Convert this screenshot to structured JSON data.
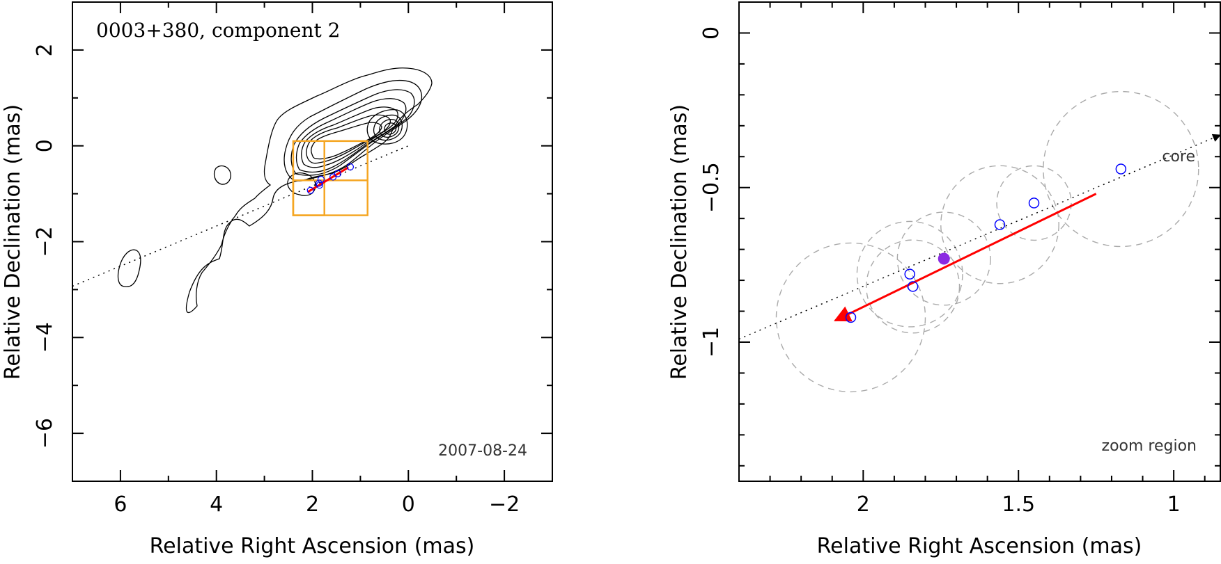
{
  "chart_data": [
    {
      "type": "scatter",
      "panel": "left",
      "title": "0003+380, component 2",
      "xlabel": "Relative Right Ascension (mas)",
      "ylabel": "Relative Declination (mas)",
      "xlim": [
        7,
        -3
      ],
      "ylim": [
        -7,
        3
      ],
      "xticks": [
        6,
        4,
        2,
        0,
        -2
      ],
      "yticks": [
        2,
        0,
        -2,
        -4,
        -6
      ],
      "xtick_labels": [
        "6",
        "4",
        "2",
        "0",
        "−2"
      ],
      "ytick_labels": [
        "2",
        "0",
        "−2",
        "−4",
        "−6"
      ],
      "date_label": "2007-08-24",
      "contour_map": "nested contours of core (peak near 0,0) with jet extending to the south-east; isolated blobs near (3.9,-0.6) and (5.8,-2.6)",
      "component_positions": [
        {
          "x": 1.21,
          "y": -0.44
        },
        {
          "x": 1.47,
          "y": -0.58
        },
        {
          "x": 1.57,
          "y": -0.65
        },
        {
          "x": 1.82,
          "y": -0.7
        },
        {
          "x": 1.86,
          "y": -0.78
        },
        {
          "x": 1.85,
          "y": -0.82
        },
        {
          "x": 2.04,
          "y": -0.93
        }
      ],
      "motion_vector": {
        "from": [
          1.25,
          -0.45
        ],
        "to": [
          2.09,
          -0.96
        ]
      },
      "direction_line": {
        "from": [
          7,
          -2.93
        ],
        "to": [
          0,
          0
        ]
      },
      "zoom_boxes": [
        {
          "x1": 2.4,
          "x2": 0.85,
          "y1": -1.45,
          "y2": 0.1
        },
        {
          "x1": 2.4,
          "x2": 1.75,
          "y1": -1.45,
          "y2": -0.72
        },
        {
          "x1": 1.75,
          "x2": 0.85,
          "y1": -0.72,
          "y2": 0.1
        }
      ],
      "colors": {
        "contour": "#000000",
        "box": "#f5a623",
        "vector": "#ff0000",
        "points": "#0000ff"
      }
    },
    {
      "type": "scatter",
      "panel": "right",
      "xlabel": "Relative Right Ascension (mas)",
      "ylabel": "Relative Declination (mas)",
      "xlim": [
        2.4,
        0.85
      ],
      "ylim": [
        -1.45,
        0.1
      ],
      "xticks": [
        2,
        1.5,
        1
      ],
      "yticks": [
        0,
        -0.5,
        -1
      ],
      "xtick_labels": [
        "2",
        "1.5",
        "1"
      ],
      "ytick_labels": [
        "0",
        "−0.5",
        "−1"
      ],
      "annotations": {
        "core": "core",
        "zoom": "zoom region"
      },
      "components": [
        {
          "x": 1.17,
          "y": -0.44,
          "r": 0.25,
          "filled": false
        },
        {
          "x": 1.45,
          "y": -0.55,
          "r": 0.12,
          "filled": false
        },
        {
          "x": 1.56,
          "y": -0.62,
          "r": 0.19,
          "filled": false
        },
        {
          "x": 1.74,
          "y": -0.73,
          "r": 0.15,
          "filled": true
        },
        {
          "x": 1.85,
          "y": -0.78,
          "r": 0.17,
          "filled": false
        },
        {
          "x": 1.84,
          "y": -0.82,
          "r": 0.15,
          "filled": false
        },
        {
          "x": 2.04,
          "y": -0.92,
          "r": 0.24,
          "filled": false
        }
      ],
      "motion_vector": {
        "from": [
          1.25,
          -0.52
        ],
        "to": [
          2.09,
          -0.93
        ]
      },
      "direction_line": {
        "from": [
          2.4,
          -0.99
        ],
        "to": [
          0.85,
          -0.33
        ]
      },
      "colors": {
        "vector": "#ff0000",
        "points": "#0000ff",
        "filled_point": "#8a2be2",
        "circles": "#aaaaaa"
      }
    }
  ]
}
